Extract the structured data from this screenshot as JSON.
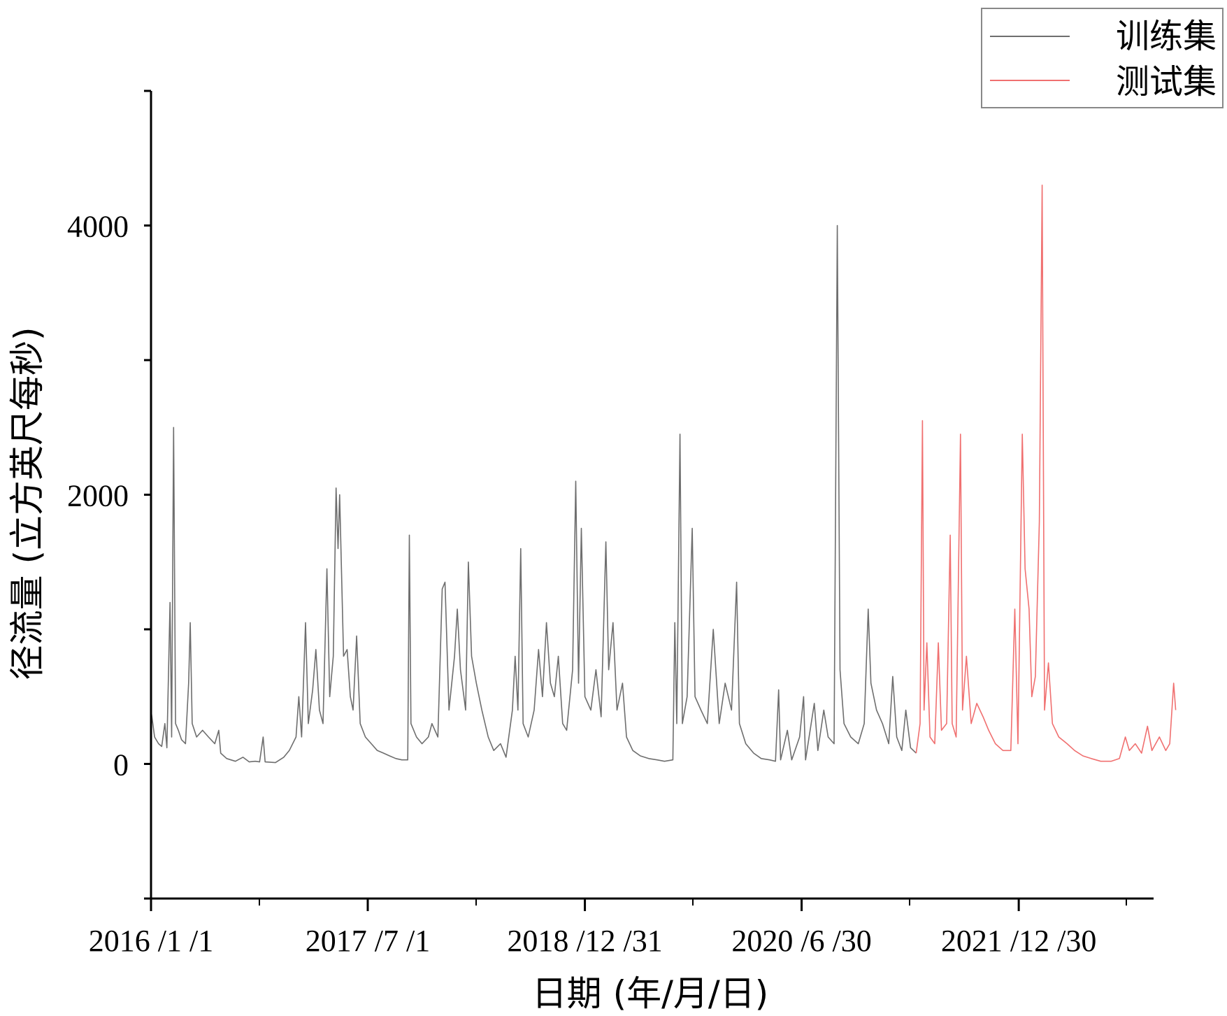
{
  "chart_data": {
    "type": "line",
    "title": "",
    "xlabel": "日期 (年/月/日)",
    "ylabel": "径流量 (立方英尺每秒)",
    "ylim": [
      -1000,
      5000
    ],
    "yticks": [
      0,
      2000,
      4000
    ],
    "xlim": [
      "2016-01-01",
      "2023-04-01"
    ],
    "xticks": [
      {
        "date": "2016-01-01",
        "label": "2016 /1 /1"
      },
      {
        "date": "2017-07-01",
        "label": "2017 /7 /1"
      },
      {
        "date": "2018-12-31",
        "label": "2018 /12 /31"
      },
      {
        "date": "2020-06-30",
        "label": "2020 /6 /30"
      },
      {
        "date": "2021-12-30",
        "label": "2021 /12 /30"
      }
    ],
    "grid": false,
    "legend_position": "top-right",
    "series": [
      {
        "name": "训练集",
        "color": "#6e6e6e",
        "points": [
          [
            "2016-01-01",
            400
          ],
          [
            "2016-01-10",
            200
          ],
          [
            "2016-01-20",
            150
          ],
          [
            "2016-01-28",
            130
          ],
          [
            "2016-02-05",
            300
          ],
          [
            "2016-02-10",
            120
          ],
          [
            "2016-02-18",
            1200
          ],
          [
            "2016-02-22",
            200
          ],
          [
            "2016-02-27",
            2500
          ],
          [
            "2016-03-03",
            300
          ],
          [
            "2016-03-10",
            250
          ],
          [
            "2016-03-18",
            180
          ],
          [
            "2016-03-28",
            150
          ],
          [
            "2016-04-05",
            600
          ],
          [
            "2016-04-09",
            1050
          ],
          [
            "2016-04-14",
            300
          ],
          [
            "2016-04-25",
            200
          ],
          [
            "2016-05-10",
            250
          ],
          [
            "2016-05-25",
            200
          ],
          [
            "2016-06-10",
            150
          ],
          [
            "2016-06-20",
            250
          ],
          [
            "2016-06-25",
            80
          ],
          [
            "2016-07-10",
            40
          ],
          [
            "2016-08-01",
            20
          ],
          [
            "2016-08-20",
            50
          ],
          [
            "2016-09-05",
            15
          ],
          [
            "2016-09-20",
            20
          ],
          [
            "2016-10-01",
            15
          ],
          [
            "2016-10-10",
            200
          ],
          [
            "2016-10-15",
            15
          ],
          [
            "2016-11-10",
            10
          ],
          [
            "2016-12-01",
            50
          ],
          [
            "2016-12-15",
            100
          ],
          [
            "2017-01-01",
            200
          ],
          [
            "2017-01-08",
            500
          ],
          [
            "2017-01-15",
            200
          ],
          [
            "2017-01-25",
            1050
          ],
          [
            "2017-02-01",
            300
          ],
          [
            "2017-02-12",
            550
          ],
          [
            "2017-02-20",
            850
          ],
          [
            "2017-03-01",
            400
          ],
          [
            "2017-03-10",
            300
          ],
          [
            "2017-03-20",
            1450
          ],
          [
            "2017-03-27",
            500
          ],
          [
            "2017-04-05",
            800
          ],
          [
            "2017-04-12",
            2050
          ],
          [
            "2017-04-17",
            1600
          ],
          [
            "2017-04-21",
            2000
          ],
          [
            "2017-05-01",
            800
          ],
          [
            "2017-05-10",
            850
          ],
          [
            "2017-05-18",
            500
          ],
          [
            "2017-05-25",
            400
          ],
          [
            "2017-06-03",
            950
          ],
          [
            "2017-06-12",
            300
          ],
          [
            "2017-06-25",
            200
          ],
          [
            "2017-07-10",
            150
          ],
          [
            "2017-07-25",
            100
          ],
          [
            "2017-08-10",
            80
          ],
          [
            "2017-08-25",
            60
          ],
          [
            "2017-09-10",
            40
          ],
          [
            "2017-09-25",
            30
          ],
          [
            "2017-10-10",
            30
          ],
          [
            "2017-10-14",
            1700
          ],
          [
            "2017-10-18",
            300
          ],
          [
            "2017-11-01",
            200
          ],
          [
            "2017-11-15",
            150
          ],
          [
            "2017-12-01",
            200
          ],
          [
            "2017-12-10",
            300
          ],
          [
            "2017-12-25",
            200
          ],
          [
            "2018-01-05",
            1300
          ],
          [
            "2018-01-12",
            1350
          ],
          [
            "2018-01-22",
            400
          ],
          [
            "2018-02-05",
            800
          ],
          [
            "2018-02-12",
            1150
          ],
          [
            "2018-02-20",
            700
          ],
          [
            "2018-03-05",
            400
          ],
          [
            "2018-03-12",
            1500
          ],
          [
            "2018-03-20",
            800
          ],
          [
            "2018-04-01",
            600
          ],
          [
            "2018-04-15",
            400
          ],
          [
            "2018-05-01",
            200
          ],
          [
            "2018-05-15",
            100
          ],
          [
            "2018-06-01",
            150
          ],
          [
            "2018-06-15",
            50
          ],
          [
            "2018-07-01",
            400
          ],
          [
            "2018-07-08",
            800
          ],
          [
            "2018-07-15",
            400
          ],
          [
            "2018-07-22",
            1600
          ],
          [
            "2018-07-28",
            300
          ],
          [
            "2018-08-10",
            200
          ],
          [
            "2018-08-25",
            400
          ],
          [
            "2018-09-05",
            850
          ],
          [
            "2018-09-15",
            500
          ],
          [
            "2018-09-25",
            1050
          ],
          [
            "2018-10-05",
            600
          ],
          [
            "2018-10-15",
            500
          ],
          [
            "2018-10-25",
            800
          ],
          [
            "2018-11-05",
            300
          ],
          [
            "2018-11-15",
            250
          ],
          [
            "2018-11-30",
            700
          ],
          [
            "2018-12-08",
            2100
          ],
          [
            "2018-12-15",
            600
          ],
          [
            "2018-12-22",
            1750
          ],
          [
            "2018-12-31",
            500
          ],
          [
            "2019-01-15",
            400
          ],
          [
            "2019-01-28",
            700
          ],
          [
            "2019-02-10",
            350
          ],
          [
            "2019-02-22",
            1650
          ],
          [
            "2019-03-01",
            700
          ],
          [
            "2019-03-12",
            1050
          ],
          [
            "2019-03-22",
            400
          ],
          [
            "2019-04-05",
            600
          ],
          [
            "2019-04-15",
            200
          ],
          [
            "2019-05-01",
            100
          ],
          [
            "2019-05-20",
            60
          ],
          [
            "2019-06-10",
            40
          ],
          [
            "2019-07-01",
            30
          ],
          [
            "2019-07-20",
            20
          ],
          [
            "2019-08-10",
            30
          ],
          [
            "2019-08-15",
            1050
          ],
          [
            "2019-08-20",
            300
          ],
          [
            "2019-08-28",
            2450
          ],
          [
            "2019-09-03",
            300
          ],
          [
            "2019-09-15",
            500
          ],
          [
            "2019-09-28",
            1750
          ],
          [
            "2019-10-05",
            500
          ],
          [
            "2019-10-20",
            400
          ],
          [
            "2019-11-05",
            300
          ],
          [
            "2019-11-20",
            1000
          ],
          [
            "2019-12-05",
            300
          ],
          [
            "2019-12-20",
            600
          ],
          [
            "2020-01-05",
            400
          ],
          [
            "2020-01-18",
            1350
          ],
          [
            "2020-01-25",
            300
          ],
          [
            "2020-02-10",
            150
          ],
          [
            "2020-03-01",
            80
          ],
          [
            "2020-03-20",
            40
          ],
          [
            "2020-04-10",
            30
          ],
          [
            "2020-04-25",
            20
          ],
          [
            "2020-05-03",
            550
          ],
          [
            "2020-05-08",
            30
          ],
          [
            "2020-05-25",
            250
          ],
          [
            "2020-06-05",
            30
          ],
          [
            "2020-06-25",
            200
          ],
          [
            "2020-07-05",
            500
          ],
          [
            "2020-07-10",
            30
          ],
          [
            "2020-08-01",
            450
          ],
          [
            "2020-08-10",
            100
          ],
          [
            "2020-08-25",
            400
          ],
          [
            "2020-09-05",
            200
          ],
          [
            "2020-09-20",
            150
          ],
          [
            "2020-09-28",
            4000
          ],
          [
            "2020-10-05",
            700
          ],
          [
            "2020-10-15",
            300
          ],
          [
            "2020-11-01",
            200
          ],
          [
            "2020-11-20",
            150
          ],
          [
            "2020-12-05",
            300
          ],
          [
            "2020-12-15",
            1150
          ],
          [
            "2020-12-22",
            600
          ],
          [
            "2021-01-05",
            400
          ],
          [
            "2021-01-20",
            300
          ],
          [
            "2021-02-05",
            150
          ],
          [
            "2021-02-15",
            650
          ],
          [
            "2021-02-25",
            200
          ],
          [
            "2021-03-10",
            100
          ],
          [
            "2021-03-20",
            400
          ],
          [
            "2021-04-01",
            120
          ],
          [
            "2021-04-15",
            80
          ]
        ]
      },
      {
        "name": "测试集",
        "color": "#f07070",
        "points": [
          [
            "2021-04-15",
            80
          ],
          [
            "2021-04-25",
            300
          ],
          [
            "2021-05-01",
            2550
          ],
          [
            "2021-05-05",
            400
          ],
          [
            "2021-05-12",
            900
          ],
          [
            "2021-05-20",
            200
          ],
          [
            "2021-06-01",
            150
          ],
          [
            "2021-06-10",
            900
          ],
          [
            "2021-06-18",
            250
          ],
          [
            "2021-07-01",
            300
          ],
          [
            "2021-07-10",
            1700
          ],
          [
            "2021-07-15",
            300
          ],
          [
            "2021-07-25",
            200
          ],
          [
            "2021-08-05",
            2450
          ],
          [
            "2021-08-10",
            400
          ],
          [
            "2021-08-20",
            800
          ],
          [
            "2021-09-01",
            300
          ],
          [
            "2021-09-15",
            450
          ],
          [
            "2021-10-01",
            350
          ],
          [
            "2021-10-15",
            250
          ],
          [
            "2021-11-01",
            150
          ],
          [
            "2021-11-20",
            100
          ],
          [
            "2021-12-10",
            100
          ],
          [
            "2021-12-20",
            1150
          ],
          [
            "2021-12-28",
            150
          ],
          [
            "2022-01-08",
            2450
          ],
          [
            "2022-01-15",
            1450
          ],
          [
            "2022-01-25",
            1150
          ],
          [
            "2022-02-01",
            500
          ],
          [
            "2022-02-10",
            650
          ],
          [
            "2022-02-20",
            1800
          ],
          [
            "2022-02-27",
            4300
          ],
          [
            "2022-03-05",
            400
          ],
          [
            "2022-03-15",
            750
          ],
          [
            "2022-03-25",
            300
          ],
          [
            "2022-04-10",
            200
          ],
          [
            "2022-05-01",
            150
          ],
          [
            "2022-05-20",
            100
          ],
          [
            "2022-06-10",
            60
          ],
          [
            "2022-07-01",
            40
          ],
          [
            "2022-07-25",
            20
          ],
          [
            "2022-08-20",
            20
          ],
          [
            "2022-09-10",
            40
          ],
          [
            "2022-09-25",
            200
          ],
          [
            "2022-10-05",
            100
          ],
          [
            "2022-10-20",
            150
          ],
          [
            "2022-11-05",
            80
          ],
          [
            "2022-11-20",
            280
          ],
          [
            "2022-12-01",
            100
          ],
          [
            "2022-12-20",
            200
          ],
          [
            "2023-01-05",
            100
          ],
          [
            "2023-01-15",
            150
          ],
          [
            "2023-01-25",
            600
          ],
          [
            "2023-01-30",
            400
          ]
        ]
      }
    ]
  }
}
